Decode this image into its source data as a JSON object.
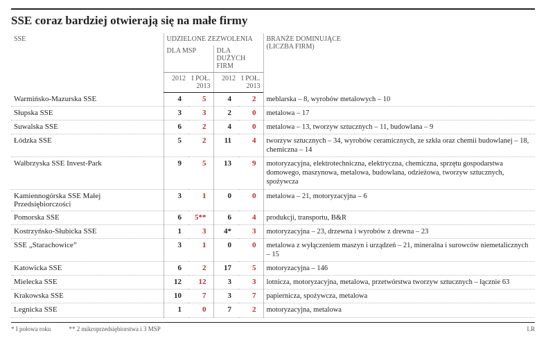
{
  "title": "SSE coraz bardziej otwierają się na małe firmy",
  "headers": {
    "sse": "SSE",
    "zezwolenia": "UDZIELONE ZEZWOLENIA",
    "msp": "DLA MSP",
    "duze": "DLA DUŻYCH FIRM",
    "y2012": "2012",
    "h1_2013": "I POŁ. 2013",
    "branze": "BRANŻE DOMINUJĄCE",
    "branze2": "(LICZBA FIRM)"
  },
  "rows": [
    {
      "name": "Warmińsko-Mazurska SSE",
      "msp2012": "4",
      "msp2013": "5",
      "duze2012": "4",
      "duze2013": "2",
      "branze": "meblarska – 8, wyrobów metalowych – 10"
    },
    {
      "name": "Słupska SSE",
      "msp2012": "3",
      "msp2013": "3",
      "duze2012": "2",
      "duze2013": "0",
      "branze": "metalowa – 17"
    },
    {
      "name": "Suwalska SSE",
      "msp2012": "6",
      "msp2013": "2",
      "duze2012": "4",
      "duze2013": "0",
      "branze": "metalowa – 13, tworzyw sztucznych – 11, budowlana – 9"
    },
    {
      "name": "Łódzka SSE",
      "msp2012": "5",
      "msp2013": "2",
      "duze2012": "11",
      "duze2013": "4",
      "branze": "tworzyw sztucznych – 34, wyrobów ceramicznych, ze szkła oraz chemii budowlanej – 18, chemiczna – 14"
    },
    {
      "name": "Wałbrzyska SSE Invest-Park",
      "msp2012": "9",
      "msp2013": "5",
      "duze2012": "13",
      "duze2013": "9",
      "branze": "motoryzacyjna, elektrotechniczna, elektryczna, chemiczna, sprzętu gospodarstwa domowego, maszynowa, metalowa, budowlana, odzieżowa, tworzyw sztucznych, spożywcza"
    },
    {
      "name": "Kamiennogórska SSE Małej Przedsiębiorczości",
      "msp2012": "3",
      "msp2013": "1",
      "duze2012": "0",
      "duze2013": "0",
      "branze": "metalowa – 21, motoryzacyjna – 6"
    },
    {
      "name": "Pomorska SSE",
      "msp2012": "6",
      "msp2013": "5**",
      "duze2012": "6",
      "duze2013": "4",
      "branze": "produkcji, transportu, B&R"
    },
    {
      "name": "Kostrzyńsko-Słubicka SSE",
      "msp2012": "1",
      "msp2013": "3",
      "duze2012": "4*",
      "duze2013": "3",
      "branze": "motoryzacyjna – 23, drzewna i wyrobów z drewna – 23"
    },
    {
      "name": "SSE „Starachowice”",
      "msp2012": "3",
      "msp2013": "1",
      "duze2012": "0",
      "duze2013": "0",
      "branze": "metalowa z wyłączeniem maszyn i urządzeń – 21, mineralna i surowców niemetalicznych – 15"
    },
    {
      "name": "Katowicka SSE",
      "msp2012": "6",
      "msp2013": "2",
      "duze2012": "17",
      "duze2013": "5",
      "branze": "motoryzacyjna – 146"
    },
    {
      "name": "Mielecka SSE",
      "msp2012": "12",
      "msp2013": "12",
      "duze2012": "3",
      "duze2013": "3",
      "branze": "lotnicza, motoryzacyjna, metalowa, przetwórstwa tworzyw sztucznych – łącznie 63"
    },
    {
      "name": "Krakowska SSE",
      "msp2012": "10",
      "msp2013": "7",
      "duze2012": "3",
      "duze2013": "7",
      "branze": "papiernicza, spożywcza, metalowa"
    },
    {
      "name": "Legnicka SSE",
      "msp2012": "1",
      "msp2013": "0",
      "duze2012": "7",
      "duze2013": "2",
      "branze": "motoryzacyjna, metalowa"
    }
  ],
  "footnotes": {
    "f1": "* I połowa roku",
    "f2": "** 2 mikroprzedsiębiorstwa i 3 MSP",
    "credit": "LR"
  },
  "colors": {
    "accent_red": "#c1272d",
    "text": "#222222",
    "muted": "#555555",
    "rule": "#bbbbbb"
  }
}
